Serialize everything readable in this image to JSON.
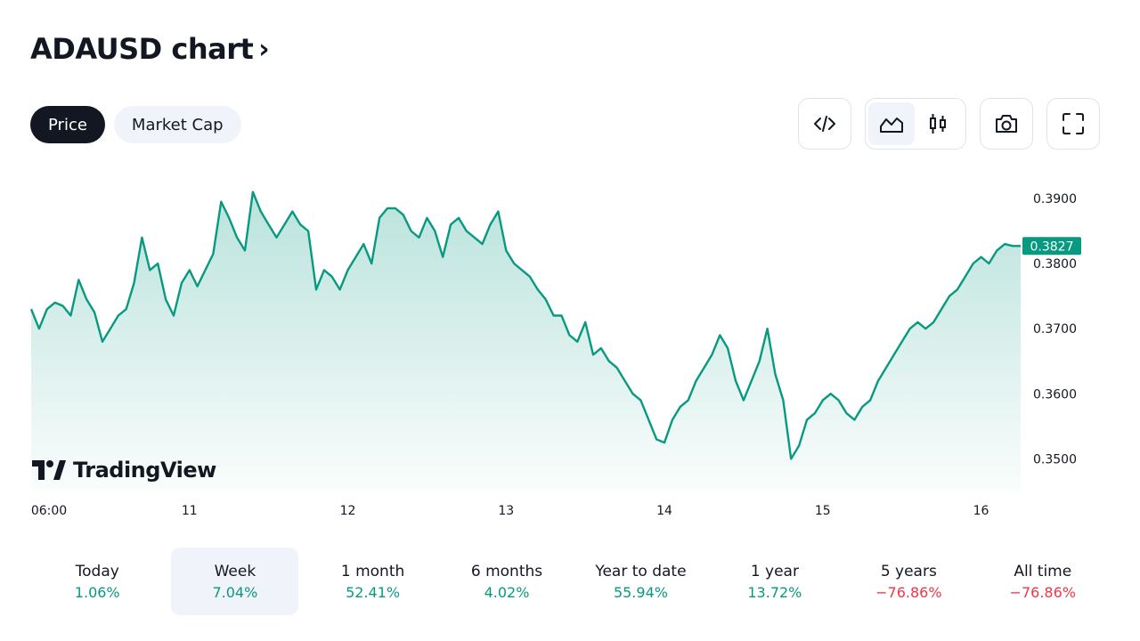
{
  "header": {
    "title": "ADAUSD chart",
    "chevron": "›"
  },
  "tabs": [
    {
      "label": "Price",
      "active": true
    },
    {
      "label": "Market Cap",
      "active": false
    }
  ],
  "toolbar": {
    "embed": "code-icon",
    "line": "line-chart-icon",
    "candles": "candlestick-icon",
    "snapshot": "camera-icon",
    "fullscreen": "fullscreen-icon"
  },
  "logo": {
    "text": "TradingView"
  },
  "colors": {
    "line": "#089981",
    "positive": "#089981",
    "negative": "#f23645",
    "price_label_bg": "#089981"
  },
  "chart_data": {
    "type": "area",
    "symbol": "ADAUSD",
    "current_price": "0.3827",
    "y_ticks": [
      "0.3900",
      "0.3800",
      "0.3700",
      "0.3600",
      "0.3500"
    ],
    "x_ticks": [
      "06:00",
      "11",
      "12",
      "13",
      "14",
      "15",
      "16"
    ],
    "x_tick_positions_days": [
      0,
      1,
      2,
      3,
      4,
      5,
      6
    ],
    "ylim": [
      0.345,
      0.3945
    ],
    "xlim": [
      0,
      6.25
    ],
    "grid": false,
    "x": [
      0,
      0.05,
      0.1,
      0.15,
      0.2,
      0.25,
      0.3,
      0.35,
      0.4,
      0.45,
      0.5,
      0.55,
      0.6,
      0.65,
      0.7,
      0.75,
      0.8,
      0.85,
      0.9,
      0.95,
      1.0,
      1.05,
      1.1,
      1.15,
      1.2,
      1.25,
      1.3,
      1.35,
      1.4,
      1.45,
      1.5,
      1.55,
      1.6,
      1.65,
      1.7,
      1.75,
      1.8,
      1.85,
      1.9,
      1.95,
      2.0,
      2.05,
      2.1,
      2.15,
      2.2,
      2.25,
      2.3,
      2.35,
      2.4,
      2.45,
      2.5,
      2.55,
      2.6,
      2.65,
      2.7,
      2.75,
      2.8,
      2.85,
      2.9,
      2.95,
      3.0,
      3.05,
      3.1,
      3.15,
      3.2,
      3.25,
      3.3,
      3.35,
      3.4,
      3.45,
      3.5,
      3.55,
      3.6,
      3.65,
      3.7,
      3.75,
      3.8,
      3.85,
      3.9,
      3.95,
      4.0,
      4.05,
      4.1,
      4.15,
      4.2,
      4.25,
      4.3,
      4.35,
      4.4,
      4.45,
      4.5,
      4.55,
      4.6,
      4.65,
      4.7,
      4.75,
      4.8,
      4.85,
      4.9,
      4.95,
      5.0,
      5.05,
      5.1,
      5.15,
      5.2,
      5.25,
      5.3,
      5.35,
      5.4,
      5.45,
      5.5,
      5.55,
      5.6,
      5.65,
      5.7,
      5.75,
      5.8,
      5.85,
      5.9,
      5.95,
      6.0,
      6.05,
      6.1,
      6.15,
      6.2,
      6.25
    ],
    "values": [
      0.373,
      0.37,
      0.373,
      0.374,
      0.3735,
      0.372,
      0.3775,
      0.3745,
      0.3725,
      0.368,
      0.37,
      0.372,
      0.373,
      0.377,
      0.384,
      0.379,
      0.38,
      0.3745,
      0.372,
      0.377,
      0.379,
      0.3765,
      0.379,
      0.3815,
      0.3895,
      0.387,
      0.384,
      0.382,
      0.391,
      0.388,
      0.386,
      0.384,
      0.386,
      0.388,
      0.386,
      0.385,
      0.376,
      0.379,
      0.378,
      0.376,
      0.379,
      0.381,
      0.383,
      0.38,
      0.387,
      0.3885,
      0.3885,
      0.3875,
      0.385,
      0.384,
      0.387,
      0.385,
      0.381,
      0.386,
      0.387,
      0.385,
      0.384,
      0.383,
      0.386,
      0.388,
      0.382,
      0.38,
      0.379,
      0.378,
      0.376,
      0.3745,
      0.372,
      0.372,
      0.369,
      0.368,
      0.371,
      0.366,
      0.367,
      0.365,
      0.364,
      0.362,
      0.36,
      0.359,
      0.356,
      0.353,
      0.3525,
      0.356,
      0.358,
      0.359,
      0.362,
      0.364,
      0.366,
      0.369,
      0.367,
      0.362,
      0.359,
      0.362,
      0.365,
      0.37,
      0.363,
      0.359,
      0.35,
      0.352,
      0.356,
      0.357,
      0.359,
      0.36,
      0.359,
      0.357,
      0.356,
      0.358,
      0.359,
      0.362,
      0.364,
      0.366,
      0.368,
      0.37,
      0.371,
      0.37,
      0.371,
      0.373,
      0.375,
      0.376,
      0.378,
      0.38,
      0.381,
      0.38,
      0.382,
      0.383,
      0.3827,
      0.3827
    ]
  },
  "periods": [
    {
      "label": "Today",
      "value": "1.06%",
      "sign": "pos",
      "selected": false
    },
    {
      "label": "Week",
      "value": "7.04%",
      "sign": "pos",
      "selected": true
    },
    {
      "label": "1 month",
      "value": "52.41%",
      "sign": "pos",
      "selected": false
    },
    {
      "label": "6 months",
      "value": "4.02%",
      "sign": "pos",
      "selected": false
    },
    {
      "label": "Year to date",
      "value": "55.94%",
      "sign": "pos",
      "selected": false
    },
    {
      "label": "1 year",
      "value": "13.72%",
      "sign": "pos",
      "selected": false
    },
    {
      "label": "5 years",
      "value": "−76.86%",
      "sign": "neg",
      "selected": false
    },
    {
      "label": "All time",
      "value": "−76.86%",
      "sign": "neg",
      "selected": false
    }
  ]
}
